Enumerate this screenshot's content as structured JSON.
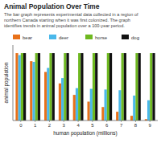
{
  "chart_data": {
    "type": "bar",
    "title": "Animal Population Over Time",
    "subtitle": [
      "The bar graph represents experimental data collected in a region of",
      "northern Canada starting when it was first colonized.  The graph",
      "identifies trends in animal population over a 100-year period."
    ],
    "x_label": "human population (millions)",
    "y_label": "animal population",
    "x": [
      0,
      1,
      2,
      3,
      4,
      5,
      6,
      7,
      8,
      9
    ],
    "xlim": [
      -0.55,
      9.55
    ],
    "xticks": [
      0,
      1,
      2,
      3,
      4,
      5,
      6,
      7,
      8,
      9
    ],
    "ylim": [
      0,
      1.12
    ],
    "yticks": [],
    "tick_labels": "x",
    "legend": "top",
    "series": [
      {
        "name": "bear",
        "color": "#e8711a",
        "values": [
          1.0,
          0.88,
          0.72,
          0.55,
          0.38,
          0.28,
          0.2,
          0.13,
          0.07,
          0.02
        ]
      },
      {
        "name": "deer",
        "color": "#4ab8ea",
        "values": [
          0.97,
          0.87,
          0.78,
          0.63,
          0.48,
          0.47,
          0.46,
          0.45,
          0.37,
          0.3
        ]
      },
      {
        "name": "horse",
        "color": "#6eb820",
        "values": [
          1.0,
          1.0,
          1.0,
          1.0,
          1.0,
          1.0,
          1.0,
          1.0,
          1.0,
          1.0
        ]
      },
      {
        "name": "dog",
        "color": "#111111",
        "values": [
          1.0,
          1.0,
          1.0,
          1.0,
          1.0,
          1.0,
          1.0,
          1.0,
          1.0,
          1.0
        ]
      }
    ]
  }
}
